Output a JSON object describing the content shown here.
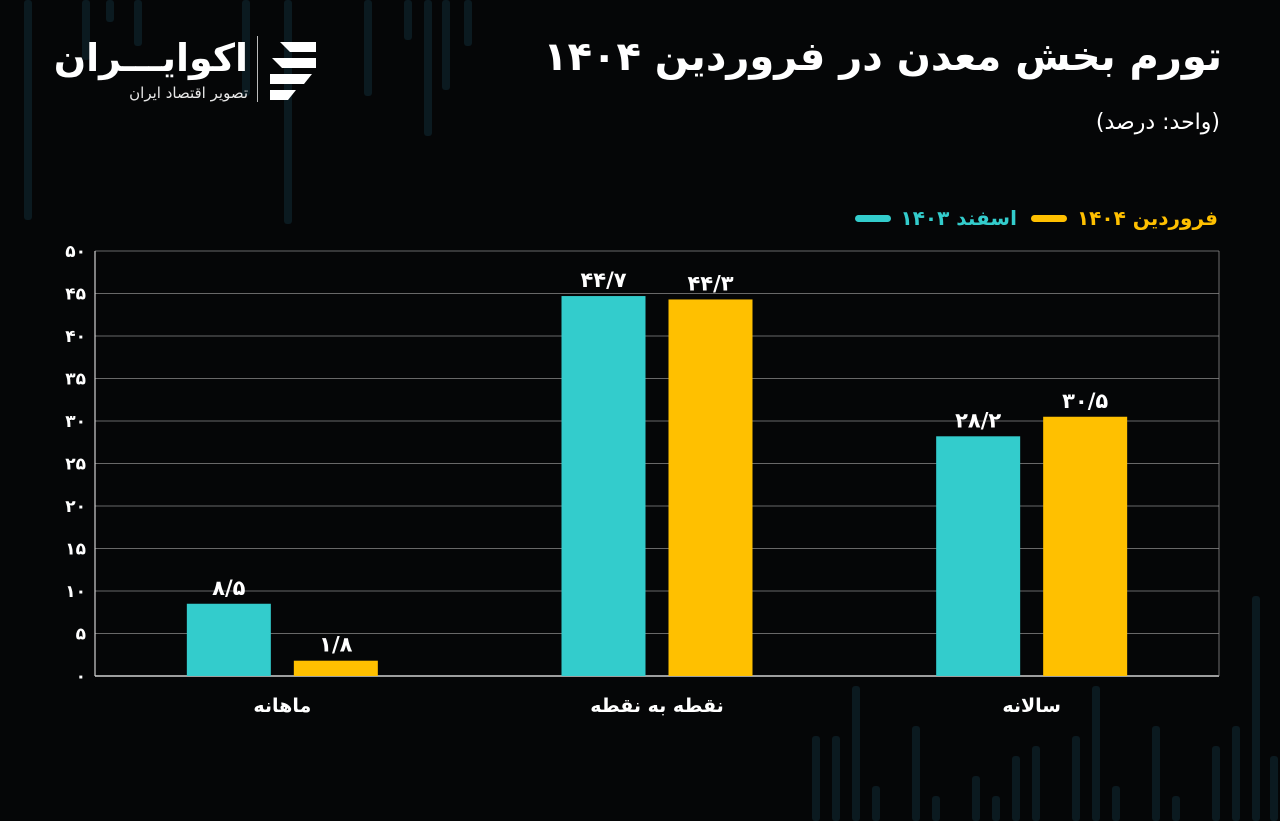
{
  "header": {
    "title": "تورم بخش معدن در فروردین ۱۴۰۴",
    "subtitle": "(واحد: درصد)"
  },
  "logo": {
    "name": "اکوایـــران",
    "tagline": "تصویر اقتصاد ایران"
  },
  "colors": {
    "background": "#050607",
    "series_1": "#33CCCC",
    "series_2": "#FFC000",
    "grid": "#8a8a8a"
  },
  "chart_data": {
    "type": "bar",
    "categories": [
      "ماهانه",
      "نقطه به نقطه",
      "سالانه"
    ],
    "series": [
      {
        "name": "اسفند ۱۴۰۳",
        "values": [
          8.5,
          44.7,
          28.2
        ],
        "labels": [
          "۸/۵",
          "۴۴/۷",
          "۲۸/۲"
        ]
      },
      {
        "name": "فروردین ۱۴۰۴",
        "values": [
          1.8,
          44.3,
          30.5
        ],
        "labels": [
          "۱/۸",
          "۴۴/۳",
          "۳۰/۵"
        ]
      }
    ],
    "ylim": [
      0,
      50
    ],
    "yticks": [
      0,
      5,
      10,
      15,
      20,
      25,
      30,
      35,
      40,
      45,
      50
    ],
    "ytick_labels": [
      "۰",
      "۵",
      "۱۰",
      "۱۵",
      "۲۰",
      "۲۵",
      "۳۰",
      "۳۵",
      "۴۰",
      "۴۵",
      "۵۰"
    ],
    "grid": true,
    "legend_position": "top-right"
  }
}
